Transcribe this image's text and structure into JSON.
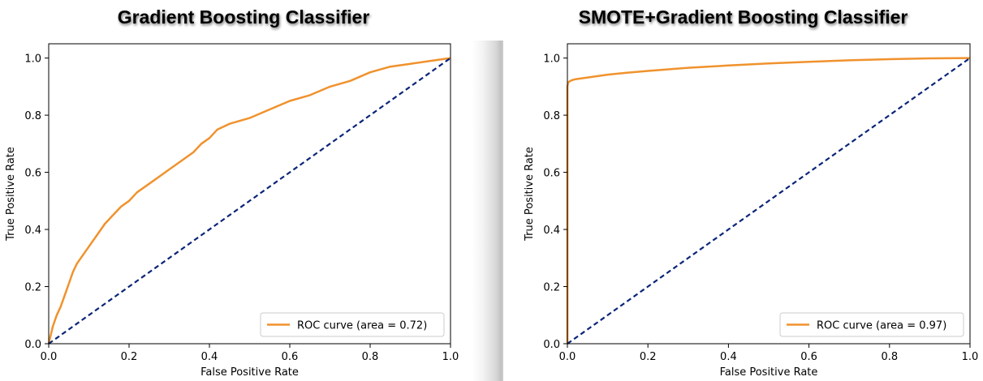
{
  "chart_data": [
    {
      "type": "line",
      "title": "Gradient Boosting Classifier",
      "xlabel": "False Positive Rate",
      "ylabel": "True Positive Rate",
      "xlim": [
        0.0,
        1.0
      ],
      "ylim": [
        0.0,
        1.05
      ],
      "xticks": [
        "0.0",
        "0.2",
        "0.4",
        "0.6",
        "0.8",
        "1.0"
      ],
      "yticks": [
        "0.0",
        "0.2",
        "0.4",
        "0.6",
        "0.8",
        "1.0"
      ],
      "legend_position": "lower-right",
      "colors": {
        "roc": "#f0922d",
        "diagonal": "#0a2478"
      },
      "series": [
        {
          "name": "ROC curve (area = 0.72)",
          "x": [
            0.0,
            0.005,
            0.01,
            0.02,
            0.03,
            0.04,
            0.05,
            0.06,
            0.07,
            0.08,
            0.1,
            0.12,
            0.14,
            0.16,
            0.18,
            0.2,
            0.22,
            0.25,
            0.28,
            0.3,
            0.33,
            0.36,
            0.38,
            0.4,
            0.42,
            0.45,
            0.5,
            0.55,
            0.6,
            0.65,
            0.7,
            0.75,
            0.8,
            0.85,
            0.9,
            0.95,
            1.0
          ],
          "y": [
            0.0,
            0.03,
            0.06,
            0.1,
            0.13,
            0.17,
            0.21,
            0.25,
            0.28,
            0.3,
            0.34,
            0.38,
            0.42,
            0.45,
            0.48,
            0.5,
            0.53,
            0.56,
            0.59,
            0.61,
            0.64,
            0.67,
            0.7,
            0.72,
            0.75,
            0.77,
            0.79,
            0.82,
            0.85,
            0.87,
            0.9,
            0.92,
            0.95,
            0.97,
            0.98,
            0.99,
            1.0
          ]
        },
        {
          "name": "",
          "style": "dashed",
          "x": [
            0.0,
            1.0
          ],
          "y": [
            0.0,
            1.0
          ]
        }
      ]
    },
    {
      "type": "line",
      "title": "SMOTE+Gradient Boosting Classifier",
      "xlabel": "False Positive Rate",
      "ylabel": "True Positive Rate",
      "xlim": [
        0.0,
        1.0
      ],
      "ylim": [
        0.0,
        1.05
      ],
      "xticks": [
        "0.0",
        "0.2",
        "0.4",
        "0.6",
        "0.8",
        "1.0"
      ],
      "yticks": [
        "0.0",
        "0.2",
        "0.4",
        "0.6",
        "0.8",
        "1.0"
      ],
      "legend_position": "lower-right",
      "colors": {
        "roc": "#f0922d",
        "diagonal": "#0a2478"
      },
      "series": [
        {
          "name": "ROC curve (area = 0.97)",
          "x": [
            0.0,
            0.0,
            0.002,
            0.005,
            0.01,
            0.02,
            0.05,
            0.1,
            0.15,
            0.2,
            0.3,
            0.4,
            0.5,
            0.6,
            0.7,
            0.8,
            0.9,
            1.0
          ],
          "y": [
            0.0,
            0.9,
            0.915,
            0.918,
            0.922,
            0.926,
            0.932,
            0.942,
            0.949,
            0.955,
            0.966,
            0.974,
            0.981,
            0.987,
            0.992,
            0.996,
            0.999,
            1.0
          ]
        },
        {
          "name": "",
          "style": "dashed",
          "x": [
            0.0,
            1.0
          ],
          "y": [
            0.0,
            1.0
          ]
        }
      ]
    }
  ]
}
